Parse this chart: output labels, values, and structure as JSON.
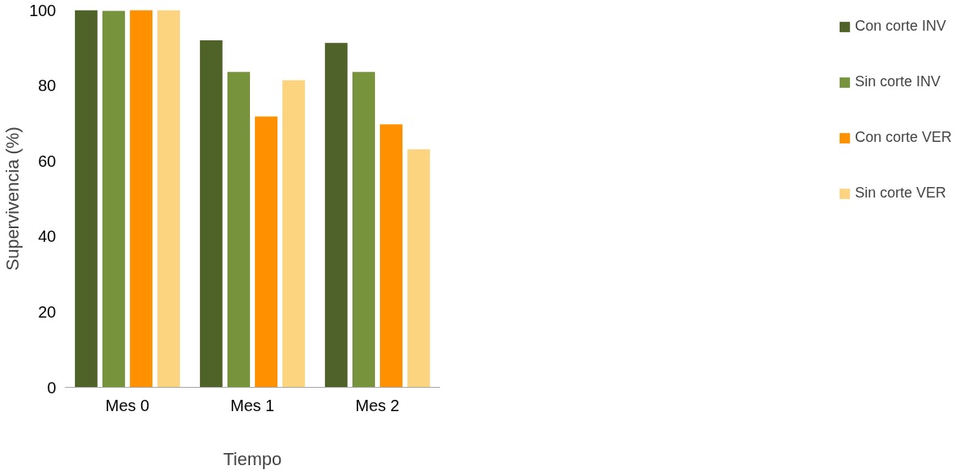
{
  "chart_data": {
    "type": "bar",
    "xlabel": "Tiempo",
    "ylabel": "Supervivencia (%)",
    "categories": [
      "Mes 0",
      "Mes 1",
      "Mes 2"
    ],
    "series": [
      {
        "name": "Con corte INV",
        "color": "#4f6228",
        "values": [
          100,
          92,
          91.3
        ]
      },
      {
        "name": "Sin corte INV",
        "color": "#77933c",
        "values": [
          99.8,
          83.6,
          83.6
        ]
      },
      {
        "name": "Con corte VER",
        "color": "#ff9000",
        "values": [
          100,
          71.8,
          69.7
        ]
      },
      {
        "name": "Sin corte VER",
        "color": "#fcd37f",
        "values": [
          100,
          81.4,
          63.1
        ]
      }
    ],
    "ylim": [
      0,
      100
    ],
    "yticks": [
      0,
      20,
      40,
      60,
      80,
      100
    ],
    "grid": false,
    "legend": "right"
  }
}
